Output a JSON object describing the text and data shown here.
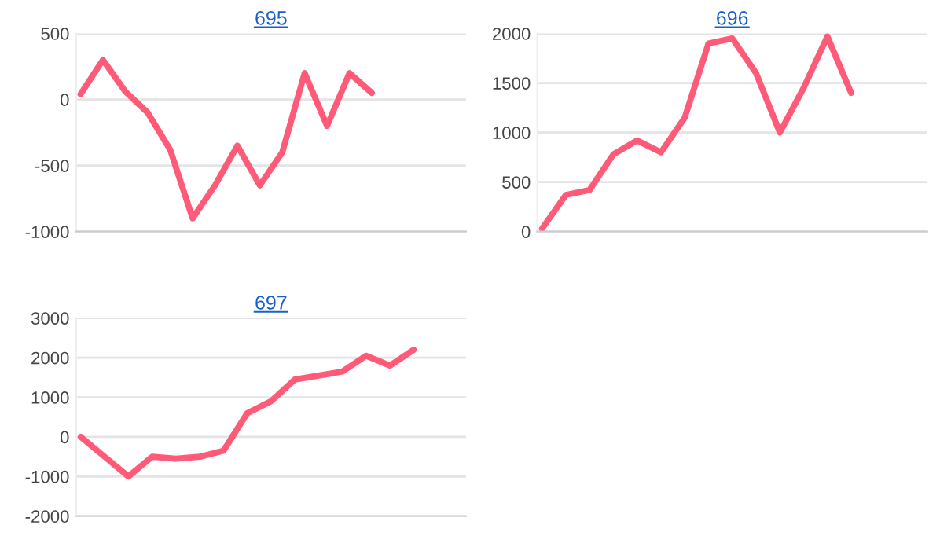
{
  "chart_data": [
    {
      "type": "line",
      "title": "695",
      "categories": [
        null,
        null,
        null,
        null,
        null,
        null,
        null,
        null,
        null,
        null,
        null,
        null,
        null,
        null,
        null,
        null,
        null,
        null
      ],
      "series": [
        {
          "color": "#ff5a78",
          "values": [
            40,
            300,
            60,
            -100,
            -380,
            -900,
            -650,
            -350,
            -650,
            -400,
            200,
            -200,
            200,
            50,
            null,
            null,
            null,
            null
          ]
        }
      ],
      "ylim": [
        -1000,
        500
      ],
      "yticks": [
        -1000,
        -500,
        0,
        500
      ],
      "grid": "y",
      "marker": "none",
      "line_style": "solid"
    },
    {
      "type": "line",
      "title": "696",
      "categories": [
        null,
        null,
        null,
        null,
        null,
        null,
        null,
        null,
        null,
        null,
        null,
        null,
        null,
        null,
        null,
        null,
        null
      ],
      "series": [
        {
          "color": "#ff5a78",
          "values": [
            30,
            370,
            420,
            780,
            920,
            800,
            1150,
            1900,
            1950,
            1600,
            1000,
            1450,
            1970,
            1400,
            null,
            null,
            null
          ]
        }
      ],
      "ylim": [
        0,
        2000
      ],
      "yticks": [
        0,
        500,
        1000,
        1500,
        2000
      ],
      "grid": "y",
      "marker": "none",
      "line_style": "solid"
    },
    {
      "type": "line",
      "title": "697",
      "categories": [
        null,
        null,
        null,
        null,
        null,
        null,
        null,
        null,
        null,
        null,
        null,
        null,
        null,
        null,
        null,
        null,
        null
      ],
      "series": [
        {
          "color": "#ff5a78",
          "values": [
            0,
            -500,
            -1000,
            -500,
            -550,
            -500,
            -350,
            600,
            900,
            1450,
            1550,
            1650,
            2050,
            1800,
            2200,
            null,
            null
          ]
        }
      ],
      "ylim": [
        -2000,
        3000
      ],
      "yticks": [
        -2000,
        -1000,
        0,
        1000,
        2000,
        3000
      ],
      "grid": "y",
      "marker": "none",
      "line_style": "solid"
    }
  ]
}
